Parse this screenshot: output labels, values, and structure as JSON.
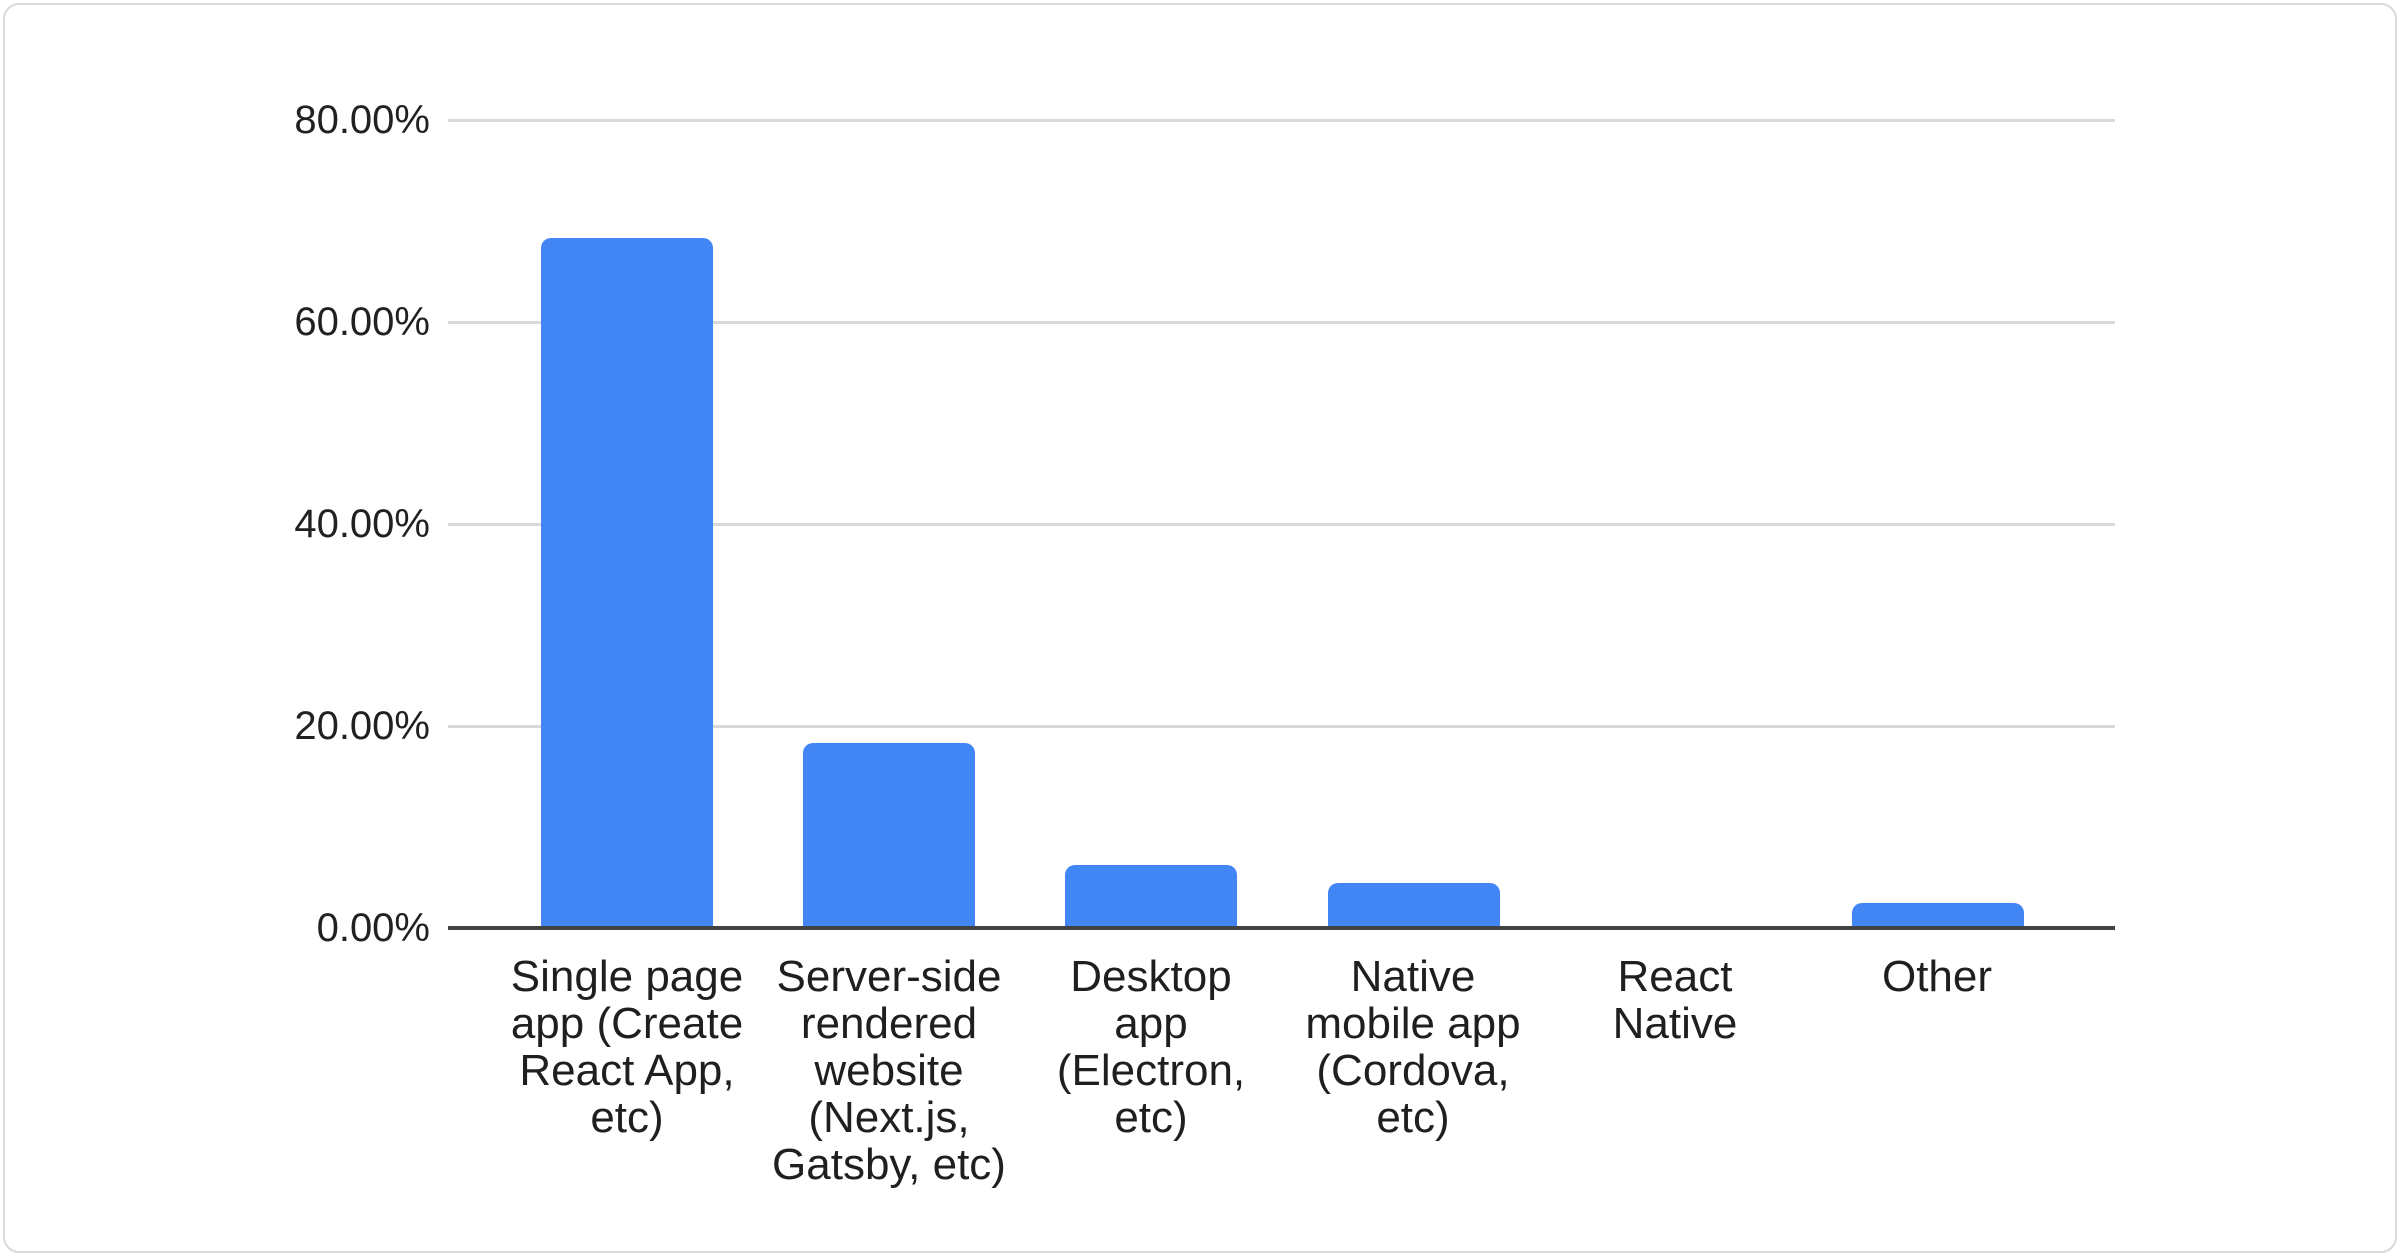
{
  "chart_data": {
    "type": "bar",
    "title": "",
    "xlabel": "",
    "ylabel": "",
    "categories": [
      "Single page app (Create React App, etc)",
      "Server-side rendered website (Next.js, Gatsby, etc)",
      "Desktop app (Electron, etc)",
      "Native mobile app (Cordova, etc)",
      "React Native",
      "Other"
    ],
    "category_lines": [
      [
        "Single page",
        "app (Create",
        "React App,",
        "etc)"
      ],
      [
        "Server-side",
        "rendered",
        "website",
        "(Next.js,",
        "Gatsby, etc)"
      ],
      [
        "Desktop",
        "app",
        "(Electron,",
        "etc)"
      ],
      [
        "Native",
        "mobile app",
        "(Cordova,",
        "etc)"
      ],
      [
        "React",
        "Native"
      ],
      [
        "Other"
      ]
    ],
    "values": [
      68.3,
      18.3,
      6.2,
      4.5,
      0,
      2.5
    ],
    "value_unit": "%",
    "ylim": [
      0,
      80
    ],
    "yticks": [
      {
        "value": 0,
        "label": "0.00%"
      },
      {
        "value": 20,
        "label": "20.00%"
      },
      {
        "value": 40,
        "label": "40.00%"
      },
      {
        "value": 60,
        "label": "60.00%"
      },
      {
        "value": 80,
        "label": "80.00%"
      }
    ],
    "grid": true,
    "legend_position": "none"
  },
  "colors": {
    "bar": "#4285f4",
    "gridline": "#d9d9d9",
    "axis": "#424242",
    "text": "#212121",
    "card_border": "#d6d9dd",
    "background": "#ffffff"
  }
}
